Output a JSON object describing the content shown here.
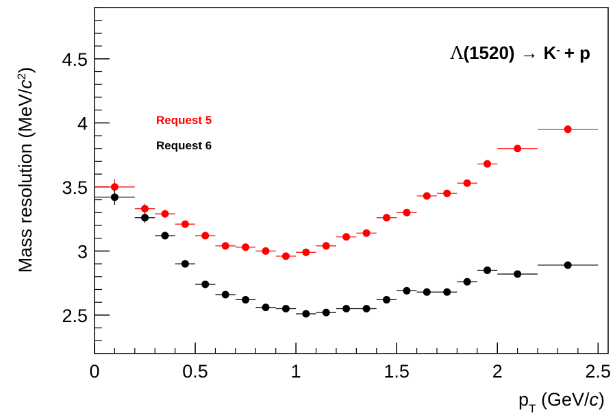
{
  "chart_data": {
    "type": "scatter",
    "xlabel": {
      "main": "p",
      "sub": "T",
      "rest": " (GeV/",
      "italic": "c",
      "close": ")"
    },
    "ylabel": {
      "main": "Mass resolution (MeV/",
      "italic": "c",
      "sup": "2",
      "close": ")"
    },
    "annotation": {
      "lambda": "Λ",
      "mass": "(1520)",
      "arrow": "→",
      "kaon": "K",
      "kaon_sup": "-",
      "proton": "+ p"
    },
    "xlim": [
      0,
      2.55
    ],
    "ylim": [
      2.2,
      4.9
    ],
    "x_ticks": [
      0,
      0.5,
      1,
      1.5,
      2,
      2.5
    ],
    "x_tick_labels": [
      "0",
      "0.5",
      "1",
      "1.5",
      "2",
      "2.5"
    ],
    "y_ticks": [
      2.5,
      3,
      3.5,
      4,
      4.5
    ],
    "y_tick_labels": [
      "2.5",
      "3",
      "3.5",
      "4",
      "4.5"
    ],
    "grid": false,
    "legend_position": "upper-left",
    "series": [
      {
        "name": "Request 5",
        "color": "#ff0000",
        "points": [
          {
            "x": 0.1,
            "y": 3.5,
            "xerr": 0.1,
            "yerr": 0.06
          },
          {
            "x": 0.25,
            "y": 3.33,
            "xerr": 0.05,
            "yerr": 0.04
          },
          {
            "x": 0.35,
            "y": 3.29,
            "xerr": 0.05,
            "yerr": 0.03
          },
          {
            "x": 0.45,
            "y": 3.21,
            "xerr": 0.05,
            "yerr": 0.02
          },
          {
            "x": 0.55,
            "y": 3.12,
            "xerr": 0.05,
            "yerr": 0.02
          },
          {
            "x": 0.65,
            "y": 3.04,
            "xerr": 0.05,
            "yerr": 0.02
          },
          {
            "x": 0.75,
            "y": 3.03,
            "xerr": 0.05,
            "yerr": 0.02
          },
          {
            "x": 0.85,
            "y": 3.0,
            "xerr": 0.05,
            "yerr": 0.02
          },
          {
            "x": 0.95,
            "y": 2.96,
            "xerr": 0.05,
            "yerr": 0.02
          },
          {
            "x": 1.05,
            "y": 2.99,
            "xerr": 0.05,
            "yerr": 0.02
          },
          {
            "x": 1.15,
            "y": 3.04,
            "xerr": 0.05,
            "yerr": 0.02
          },
          {
            "x": 1.25,
            "y": 3.11,
            "xerr": 0.05,
            "yerr": 0.02
          },
          {
            "x": 1.35,
            "y": 3.14,
            "xerr": 0.05,
            "yerr": 0.02
          },
          {
            "x": 1.45,
            "y": 3.26,
            "xerr": 0.05,
            "yerr": 0.02
          },
          {
            "x": 1.55,
            "y": 3.3,
            "xerr": 0.05,
            "yerr": 0.02
          },
          {
            "x": 1.65,
            "y": 3.43,
            "xerr": 0.05,
            "yerr": 0.02
          },
          {
            "x": 1.75,
            "y": 3.45,
            "xerr": 0.05,
            "yerr": 0.02
          },
          {
            "x": 1.85,
            "y": 3.53,
            "xerr": 0.05,
            "yerr": 0.02
          },
          {
            "x": 1.95,
            "y": 3.68,
            "xerr": 0.05,
            "yerr": 0.02
          },
          {
            "x": 2.1,
            "y": 3.8,
            "xerr": 0.1,
            "yerr": 0.02
          },
          {
            "x": 2.35,
            "y": 3.95,
            "xerr": 0.15,
            "yerr": 0.03
          }
        ]
      },
      {
        "name": "Request 6",
        "color": "#000000",
        "points": [
          {
            "x": 0.1,
            "y": 3.42,
            "xerr": 0.1,
            "yerr": 0.06
          },
          {
            "x": 0.25,
            "y": 3.26,
            "xerr": 0.05,
            "yerr": 0.04
          },
          {
            "x": 0.35,
            "y": 3.12,
            "xerr": 0.05,
            "yerr": 0.03
          },
          {
            "x": 0.45,
            "y": 2.9,
            "xerr": 0.05,
            "yerr": 0.02
          },
          {
            "x": 0.55,
            "y": 2.74,
            "xerr": 0.05,
            "yerr": 0.02
          },
          {
            "x": 0.65,
            "y": 2.66,
            "xerr": 0.05,
            "yerr": 0.02
          },
          {
            "x": 0.75,
            "y": 2.62,
            "xerr": 0.05,
            "yerr": 0.02
          },
          {
            "x": 0.85,
            "y": 2.56,
            "xerr": 0.05,
            "yerr": 0.02
          },
          {
            "x": 0.95,
            "y": 2.55,
            "xerr": 0.05,
            "yerr": 0.02
          },
          {
            "x": 1.05,
            "y": 2.51,
            "xerr": 0.05,
            "yerr": 0.02
          },
          {
            "x": 1.15,
            "y": 2.52,
            "xerr": 0.05,
            "yerr": 0.02
          },
          {
            "x": 1.25,
            "y": 2.55,
            "xerr": 0.05,
            "yerr": 0.02
          },
          {
            "x": 1.35,
            "y": 2.55,
            "xerr": 0.05,
            "yerr": 0.02
          },
          {
            "x": 1.45,
            "y": 2.62,
            "xerr": 0.05,
            "yerr": 0.02
          },
          {
            "x": 1.55,
            "y": 2.69,
            "xerr": 0.05,
            "yerr": 0.02
          },
          {
            "x": 1.65,
            "y": 2.68,
            "xerr": 0.05,
            "yerr": 0.02
          },
          {
            "x": 1.75,
            "y": 2.68,
            "xerr": 0.05,
            "yerr": 0.02
          },
          {
            "x": 1.85,
            "y": 2.76,
            "xerr": 0.05,
            "yerr": 0.02
          },
          {
            "x": 1.95,
            "y": 2.85,
            "xerr": 0.05,
            "yerr": 0.02
          },
          {
            "x": 2.1,
            "y": 2.82,
            "xerr": 0.1,
            "yerr": 0.02
          },
          {
            "x": 2.35,
            "y": 2.89,
            "xerr": 0.15,
            "yerr": 0.02
          }
        ]
      }
    ]
  }
}
